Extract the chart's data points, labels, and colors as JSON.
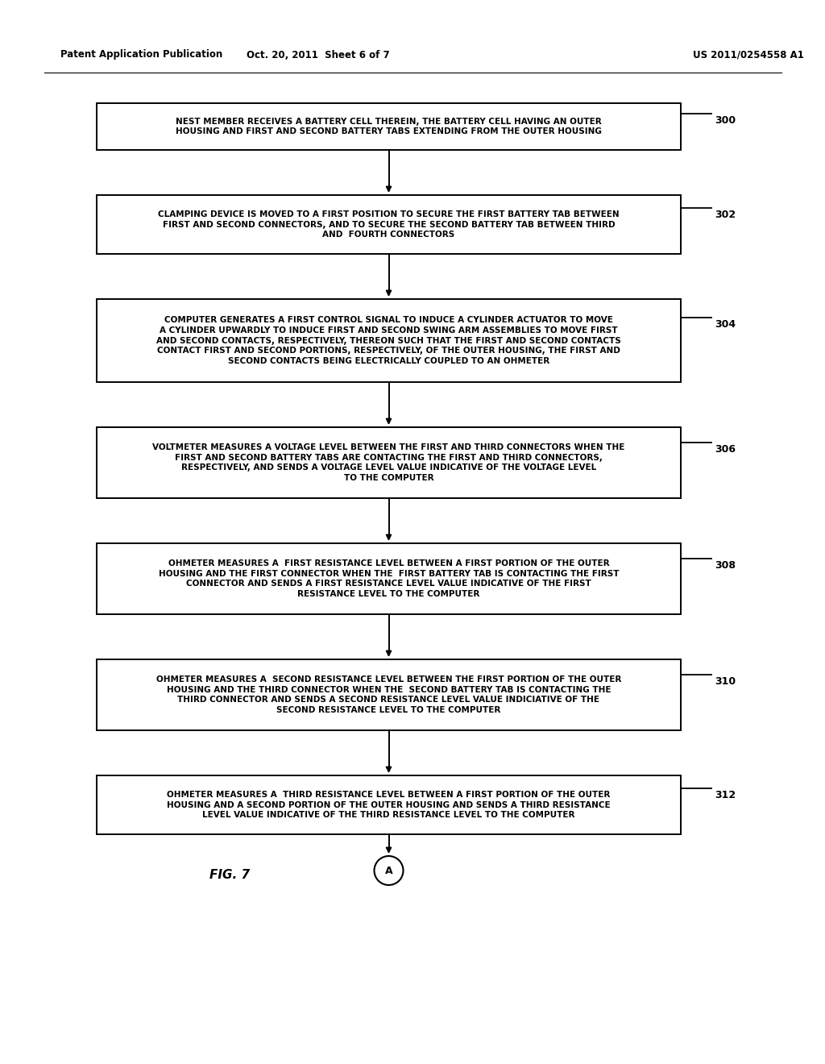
{
  "header_left": "Patent Application Publication",
  "header_center": "Oct. 20, 2011  Sheet 6 of 7",
  "header_right": "US 2011/0254558 A1",
  "figure_label": "FIG. 7",
  "circle_label": "A",
  "background_color": "#ffffff",
  "box_border_color": "#000000",
  "text_color": "#000000",
  "arrow_color": "#000000",
  "boxes": [
    {
      "label": "300",
      "text": "NEST MEMBER RECEIVES A BATTERY CELL THEREIN, THE BATTERY CELL HAVING AN OUTER\nHOUSING AND FIRST AND SECOND BATTERY TABS EXTENDING FROM THE OUTER HOUSING",
      "lines": 2
    },
    {
      "label": "302",
      "text": "CLAMPING DEVICE IS MOVED TO A FIRST POSITION TO SECURE THE FIRST BATTERY TAB BETWEEN\nFIRST AND SECOND CONNECTORS, AND TO SECURE THE SECOND BATTERY TAB BETWEEN THIRD\nAND  FOURTH CONNECTORS",
      "lines": 3
    },
    {
      "label": "304",
      "text": "COMPUTER GENERATES A FIRST CONTROL SIGNAL TO INDUCE A CYLINDER ACTUATOR TO MOVE\nA CYLINDER UPWARDLY TO INDUCE FIRST AND SECOND SWING ARM ASSEMBLIES TO MOVE FIRST\nAND SECOND CONTACTS, RESPECTIVELY, THEREON SUCH THAT THE FIRST AND SECOND CONTACTS\nCONTACT FIRST AND SECOND PORTIONS, RESPECTIVELY, OF THE OUTER HOUSING, THE FIRST AND\nSECOND CONTACTS BEING ELECTRICALLY COUPLED TO AN OHMETER",
      "lines": 5
    },
    {
      "label": "306",
      "text": "VOLTMETER MEASURES A VOLTAGE LEVEL BETWEEN THE FIRST AND THIRD CONNECTORS WHEN THE\nFIRST AND SECOND BATTERY TABS ARE CONTACTING THE FIRST AND THIRD CONNECTORS,\nRESPECTIVELY, AND SENDS A VOLTAGE LEVEL VALUE INDICATIVE OF THE VOLTAGE LEVEL\nTO THE COMPUTER",
      "lines": 4
    },
    {
      "label": "308",
      "text": "OHMETER MEASURES A  FIRST RESISTANCE LEVEL BETWEEN A FIRST PORTION OF THE OUTER\nHOUSING AND THE FIRST CONNECTOR WHEN THE  FIRST BATTERY TAB IS CONTACTING THE FIRST\nCONNECTOR AND SENDS A FIRST RESISTANCE LEVEL VALUE INDICATIVE OF THE FIRST\nRESISTANCE LEVEL TO THE COMPUTER",
      "lines": 4
    },
    {
      "label": "310",
      "text": "OHMETER MEASURES A  SECOND RESISTANCE LEVEL BETWEEN THE FIRST PORTION OF THE OUTER\nHOUSING AND THE THIRD CONNECTOR WHEN THE  SECOND BATTERY TAB IS CONTACTING THE\nTHIRD CONNECTOR AND SENDS A SECOND RESISTANCE LEVEL VALUE INDICIATIVE OF THE\nSECOND RESISTANCE LEVEL TO THE COMPUTER",
      "lines": 4
    },
    {
      "label": "312",
      "text": "OHMETER MEASURES A  THIRD RESISTANCE LEVEL BETWEEN A FIRST PORTION OF THE OUTER\nHOUSING AND A SECOND PORTION OF THE OUTER HOUSING AND SENDS A THIRD RESISTANCE\nLEVEL VALUE INDICATIVE OF THE THIRD RESISTANCE LEVEL TO THE COMPUTER",
      "lines": 3
    }
  ]
}
